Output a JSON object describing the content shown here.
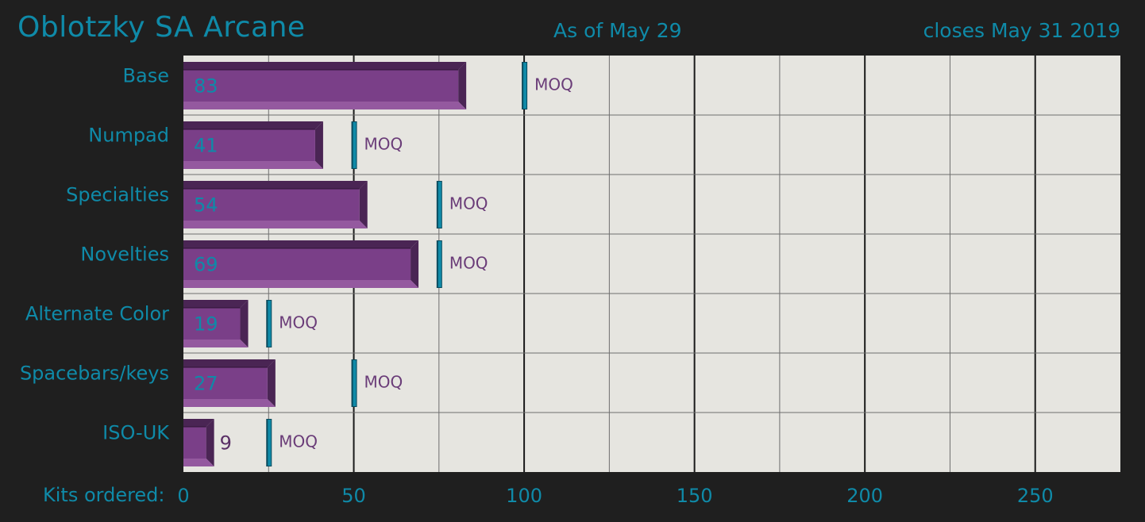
{
  "header": {
    "title": "Oblotzky SA Arcane",
    "as_of": "As of May 29",
    "closes": "closes May 31 2019"
  },
  "chart_data": {
    "type": "bar",
    "orientation": "horizontal",
    "xlabel": "Kits ordered:",
    "xlim": [
      0,
      275
    ],
    "x_ticks": [
      0,
      50,
      100,
      150,
      200,
      250
    ],
    "categories": [
      "Base",
      "Numpad",
      "Specialties",
      "Novelties",
      "Alternate Color",
      "Spacebars/keys",
      "ISO-UK"
    ],
    "values": [
      83,
      41,
      54,
      69,
      19,
      27,
      9
    ],
    "moq": [
      100,
      50,
      75,
      75,
      25,
      50,
      25
    ],
    "moq_label": "MOQ",
    "grid": true
  },
  "colors": {
    "background": "#1f1f1f",
    "plot_background": "#e6e5e0",
    "bar_fill": "#7a3f88",
    "bar_dark": "#4a2554",
    "bar_light": "#94599f",
    "accent": "#0f8aa8",
    "moq_text": "#6a3c78",
    "value_label_outside": "#5a2f66"
  }
}
